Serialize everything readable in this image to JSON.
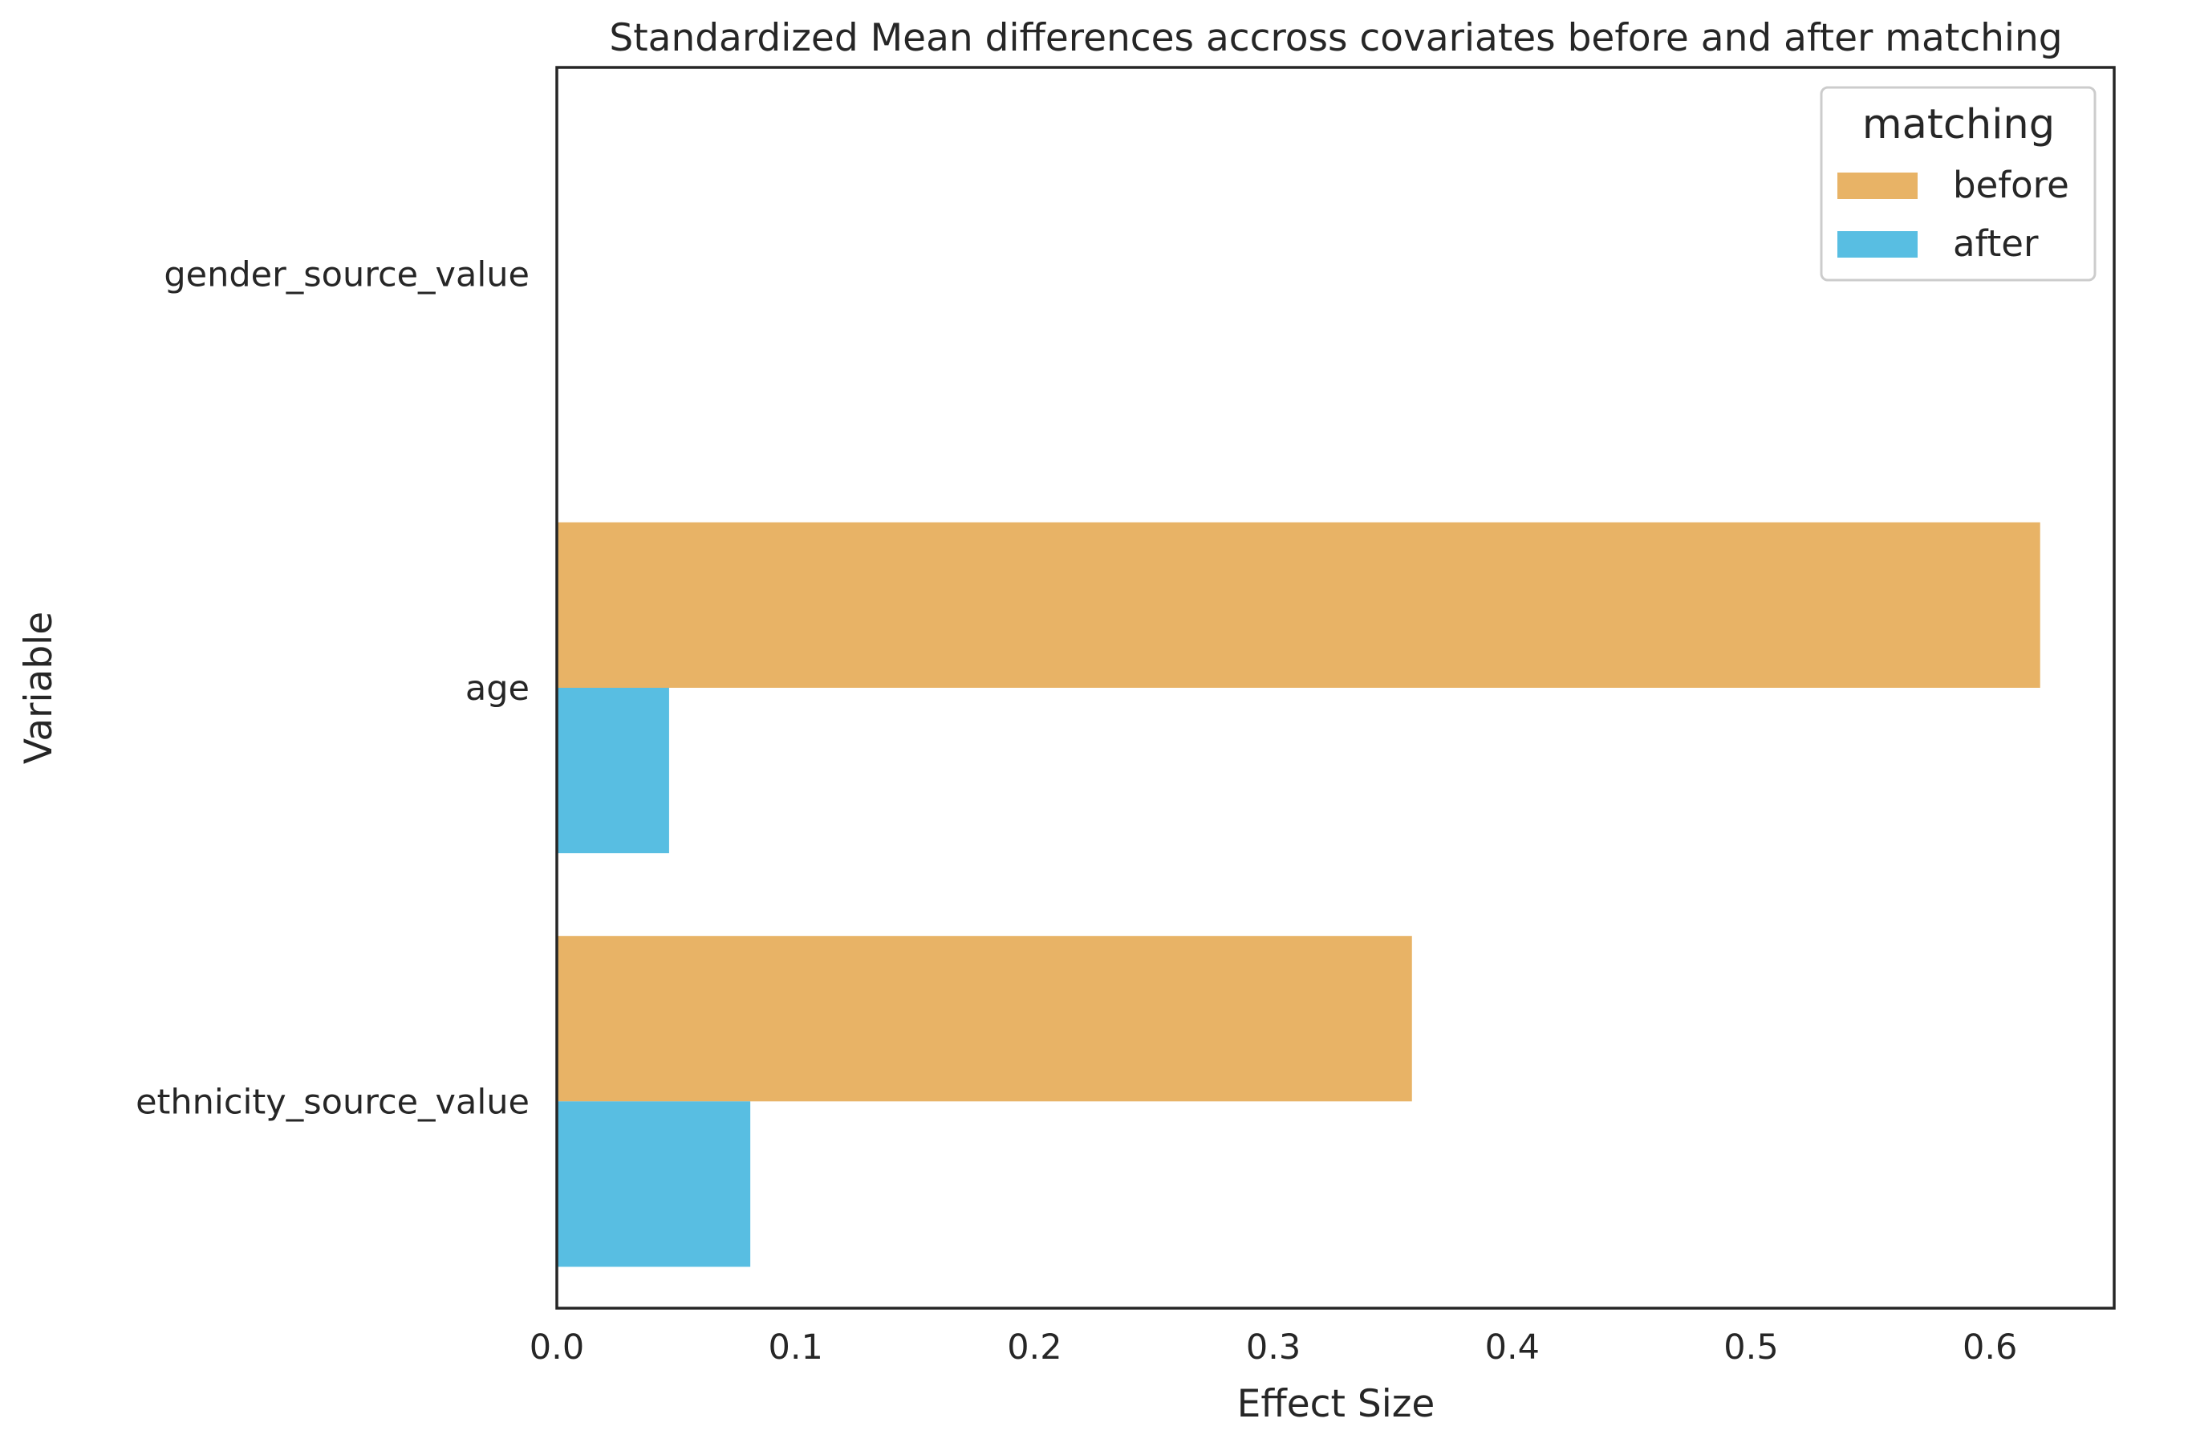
{
  "chart_data": {
    "type": "bar",
    "orientation": "horizontal",
    "title": "Standardized Mean differences accross covariates before and after matching",
    "xlabel": "Effect Size",
    "ylabel": "Variable",
    "categories": [
      "gender_source_value",
      "age",
      "ethnicity_source_value"
    ],
    "series": [
      {
        "name": "before",
        "color": "#E8B366",
        "values": [
          0,
          0.621,
          0.358
        ]
      },
      {
        "name": "after",
        "color": "#58BEE2",
        "values": [
          0,
          0.047,
          0.081
        ]
      }
    ],
    "xlim": [
      0,
      0.652
    ],
    "xticks": [
      0.0,
      0.1,
      0.2,
      0.3,
      0.4,
      0.5,
      0.6
    ],
    "xtick_labels": [
      "0.0",
      "0.1",
      "0.2",
      "0.3",
      "0.4",
      "0.5",
      "0.6"
    ],
    "grid": false,
    "legend": {
      "title": "matching",
      "placement": "top-right"
    }
  }
}
